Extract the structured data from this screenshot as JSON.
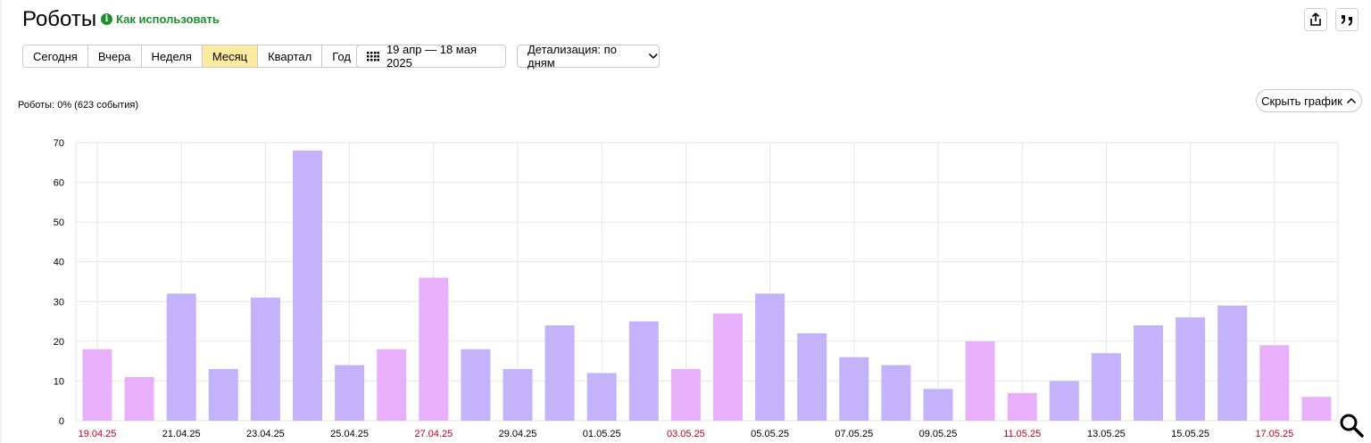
{
  "header": {
    "title": "Роботы",
    "howto_label": "Как использовать"
  },
  "toolbar": {
    "periods": [
      "Сегодня",
      "Вчера",
      "Неделя",
      "Месяц",
      "Квартал",
      "Год"
    ],
    "active_period": "Месяц",
    "date_range": "19 апр — 18 мая 2025",
    "detail_label": "Детализация: по дням"
  },
  "summary": "Роботы: 0% (623 события)",
  "hide_chart_label": "Скрыть график",
  "icons": {
    "share": "share-icon",
    "quote": "quote-icon",
    "calendar": "calendar-icon",
    "zoom": "search-icon"
  },
  "colors": {
    "weekday_bar": "#c4b2fa",
    "weekend_bar": "#e8b0fa",
    "weekend_label": "#c0001a",
    "active_period_bg": "#ffeba0",
    "accent_green": "#1a8f2e"
  },
  "chart_data": {
    "type": "bar",
    "title": "",
    "xlabel": "",
    "ylabel": "",
    "ylim": [
      0,
      70
    ],
    "yticks": [
      0,
      10,
      20,
      30,
      40,
      50,
      60,
      70
    ],
    "grid": true,
    "categories": [
      "19.04.25",
      "20.04.25",
      "21.04.25",
      "22.04.25",
      "23.04.25",
      "24.04.25",
      "25.04.25",
      "26.04.25",
      "27.04.25",
      "28.04.25",
      "29.04.25",
      "30.04.25",
      "01.05.25",
      "02.05.25",
      "03.05.25",
      "04.05.25",
      "05.05.25",
      "06.05.25",
      "07.05.25",
      "08.05.25",
      "09.05.25",
      "10.05.25",
      "11.05.25",
      "12.05.25",
      "13.05.25",
      "14.05.25",
      "15.05.25",
      "16.05.25",
      "17.05.25",
      "18.05.25"
    ],
    "values": [
      18,
      11,
      32,
      13,
      31,
      68,
      14,
      18,
      36,
      18,
      13,
      24,
      12,
      25,
      13,
      27,
      32,
      22,
      16,
      14,
      8,
      20,
      7,
      10,
      17,
      24,
      26,
      29,
      19,
      6
    ],
    "weekend": [
      true,
      true,
      false,
      false,
      false,
      false,
      false,
      true,
      true,
      false,
      false,
      false,
      false,
      false,
      true,
      true,
      false,
      false,
      false,
      false,
      false,
      true,
      true,
      false,
      false,
      false,
      false,
      false,
      true,
      true
    ],
    "x_tick_labels": [
      "19.04.25",
      "21.04.25",
      "23.04.25",
      "25.04.25",
      "27.04.25",
      "29.04.25",
      "01.05.25",
      "03.05.25",
      "05.05.25",
      "07.05.25",
      "09.05.25",
      "11.05.25",
      "13.05.25",
      "15.05.25",
      "17.05.25"
    ]
  }
}
